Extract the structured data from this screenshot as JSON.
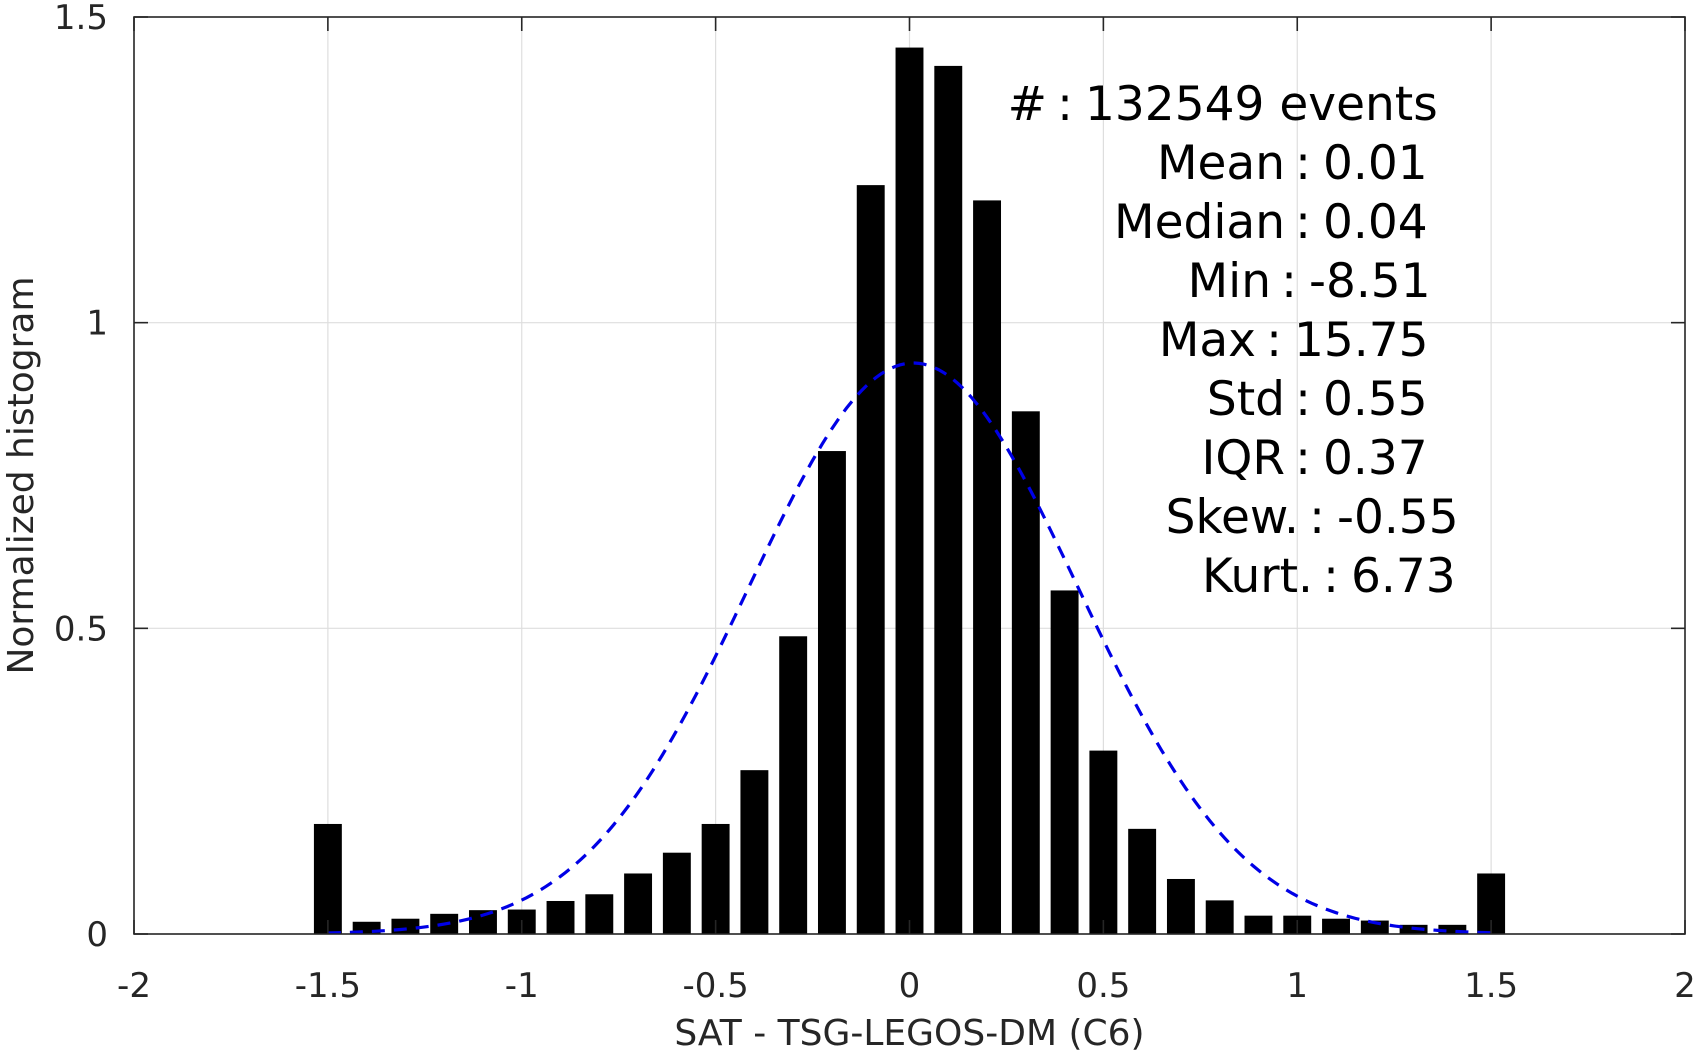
{
  "chart_data": {
    "type": "bar",
    "xlabel": "SAT - TSG-LEGOS-DM (C6)",
    "ylabel": "Normalized histogram",
    "xlim": [
      -2,
      2
    ],
    "ylim": [
      0,
      1.5
    ],
    "grid": true,
    "x_ticks": [
      {
        "value": -2,
        "label": "-2"
      },
      {
        "value": -1.5,
        "label": "-1.5"
      },
      {
        "value": -1,
        "label": "-1"
      },
      {
        "value": -0.5,
        "label": "-0.5"
      },
      {
        "value": 0,
        "label": "0"
      },
      {
        "value": 0.5,
        "label": "0.5"
      },
      {
        "value": 1,
        "label": "1"
      },
      {
        "value": 1.5,
        "label": "1.5"
      },
      {
        "value": 2,
        "label": "2"
      }
    ],
    "y_ticks": [
      {
        "value": 0,
        "label": "0"
      },
      {
        "value": 0.5,
        "label": "0.5"
      },
      {
        "value": 1,
        "label": "1"
      },
      {
        "value": 1.5,
        "label": "1.5"
      }
    ],
    "x": [
      -1.5,
      -1.4,
      -1.3,
      -1.2,
      -1.1,
      -1.0,
      -0.9,
      -0.8,
      -0.7,
      -0.6,
      -0.5,
      -0.4,
      -0.3,
      -0.2,
      -0.1,
      0.0,
      0.1,
      0.2,
      0.3,
      0.4,
      0.5,
      0.6,
      0.7,
      0.8,
      0.9,
      1.0,
      1.1,
      1.2,
      1.3,
      1.4,
      1.5
    ],
    "values": [
      0.18,
      0.02,
      0.025,
      0.033,
      0.039,
      0.04,
      0.054,
      0.065,
      0.099,
      0.133,
      0.18,
      0.268,
      0.487,
      0.79,
      1.225,
      1.45,
      1.42,
      1.2,
      0.855,
      0.562,
      0.3,
      0.172,
      0.09,
      0.055,
      0.03,
      0.03,
      0.025,
      0.022,
      0.015,
      0.015,
      0.099
    ],
    "bar_color": "#000000",
    "fit_curve": {
      "style": "dashed",
      "color": "#0000e6",
      "mean": 0.01,
      "std": 0.425,
      "peak": 0.934,
      "x_range": [
        -1.5,
        1.5
      ]
    },
    "annotations": [
      {
        "label": "#",
        "sep": ":",
        "value": "132549 events"
      },
      {
        "label": "Mean",
        "sep": ":",
        "value": "0.01"
      },
      {
        "label": "Median",
        "sep": ":",
        "value": "0.04"
      },
      {
        "label": "Min",
        "sep": ":",
        "value": "-8.51"
      },
      {
        "label": "Max",
        "sep": ":",
        "value": "15.75"
      },
      {
        "label": "Std",
        "sep": ":",
        "value": "0.55"
      },
      {
        "label": "IQR",
        "sep": ":",
        "value": "0.37"
      },
      {
        "label": "Skew.",
        "sep": ":",
        "value": "-0.55"
      },
      {
        "label": "Kurt.",
        "sep": ":",
        "value": "6.73"
      }
    ]
  }
}
